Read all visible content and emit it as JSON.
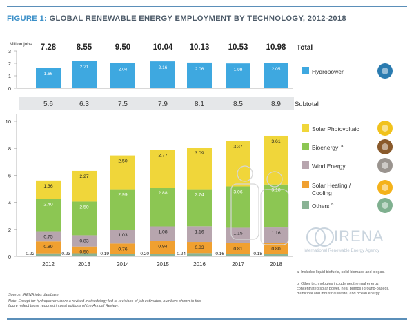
{
  "title_prefix": "FIGURE 1:",
  "title_text": "GLOBAL RENEWABLE ENERGY EMPLOYMENT BY TECHNOLOGY, 2012-2018",
  "chart_data": {
    "type": "bar",
    "categories": [
      "2012",
      "2013",
      "2014",
      "2015",
      "2016",
      "2017",
      "2018"
    ],
    "top_panel": {
      "unit_label": "Million jobs",
      "yticks": [
        0,
        1,
        2,
        3
      ],
      "ylim": [
        0,
        3
      ],
      "totals_label": "Total",
      "totals": [
        "7.28",
        "8.55",
        "9.50",
        "10.04",
        "10.13",
        "10.53",
        "10.98"
      ],
      "series": [
        {
          "name": "Hydropower",
          "color": "#3ea8e0",
          "values": [
            1.66,
            2.21,
            2.04,
            2.16,
            2.06,
            1.99,
            2.05
          ]
        }
      ]
    },
    "subtotal_label": "Subtotal",
    "subtotals": [
      "5.6",
      "6.3",
      "7.5",
      "7.9",
      "8.1",
      "8.5",
      "8.9"
    ],
    "bottom_panel": {
      "yticks": [
        0,
        2,
        4,
        6,
        8,
        10
      ],
      "ylim": [
        0,
        10.5
      ],
      "series": [
        {
          "name": "Others",
          "sup": "b",
          "color": "#8ab395",
          "values": [
            0.22,
            0.23,
            0.19,
            0.2,
            0.24,
            0.16,
            0.18
          ],
          "labels": [
            "0.22",
            "0.23",
            "0.19",
            "0.20",
            "0.24",
            "0.16",
            "0.18"
          ]
        },
        {
          "name": "Solar Heating / Cooling",
          "color": "#f0a030",
          "values": [
            0.89,
            0.5,
            0.76,
            0.94,
            0.83,
            0.81,
            0.8
          ],
          "labels": [
            "0.89",
            "0.50",
            "0.76",
            "0.94",
            "0.83",
            "0.81",
            "0.80"
          ]
        },
        {
          "name": "Wind Energy",
          "color": "#b7a5ae",
          "values": [
            0.75,
            0.83,
            1.03,
            1.08,
            1.16,
            1.15,
            1.16
          ],
          "labels": [
            "0.75",
            "0.83",
            "1.03",
            "1.08",
            "1.16",
            "1.15",
            "1.16"
          ]
        },
        {
          "name": "Bioenergy",
          "sup": "a",
          "color": "#8cc653",
          "values": [
            2.4,
            2.5,
            2.99,
            2.88,
            2.74,
            3.06,
            3.18
          ],
          "labels": [
            "2.40",
            "2.50",
            "2.99",
            "2.88",
            "2.74",
            "3.06",
            "3.18"
          ]
        },
        {
          "name": "Solar Photovoltaic",
          "color": "#f0d63a",
          "values": [
            1.36,
            2.27,
            2.5,
            2.77,
            3.09,
            3.37,
            3.61
          ],
          "labels": [
            "1.36",
            "2.27",
            "2.50",
            "2.77",
            "3.09",
            "3.37",
            "3.61"
          ]
        }
      ]
    },
    "legend_order": [
      "Solar Photovoltaic",
      "Bioenergy",
      "Wind Energy",
      "Solar Heating / Cooling",
      "Others"
    ],
    "icons": {
      "Hydropower": "water-drop-icon",
      "Solar Photovoltaic": "sun-icon",
      "Bioenergy": "plant-icon",
      "Wind Energy": "wind-turbine-icon",
      "Solar Heating / Cooling": "solar-heating-icon",
      "Others": "plus-icon"
    }
  },
  "source": "Source: IRENA jobs database.",
  "note": "Note: Except for hydropower where a revised methodology led to revisions of job estimates, numbers shown in this figure reflect those reported in past editions of the Annual Review.",
  "footnote_a": "a. Includes liquid biofuels, solid biomass and biogas.",
  "footnote_b": "b. Other technologies include geothermal energy, concentrated solar power, heat pumps (ground-based), municipal and industrial waste, and ocean energy.",
  "logo_text": "IRENA",
  "logo_subtitle": "International Renewable Energy Agency"
}
